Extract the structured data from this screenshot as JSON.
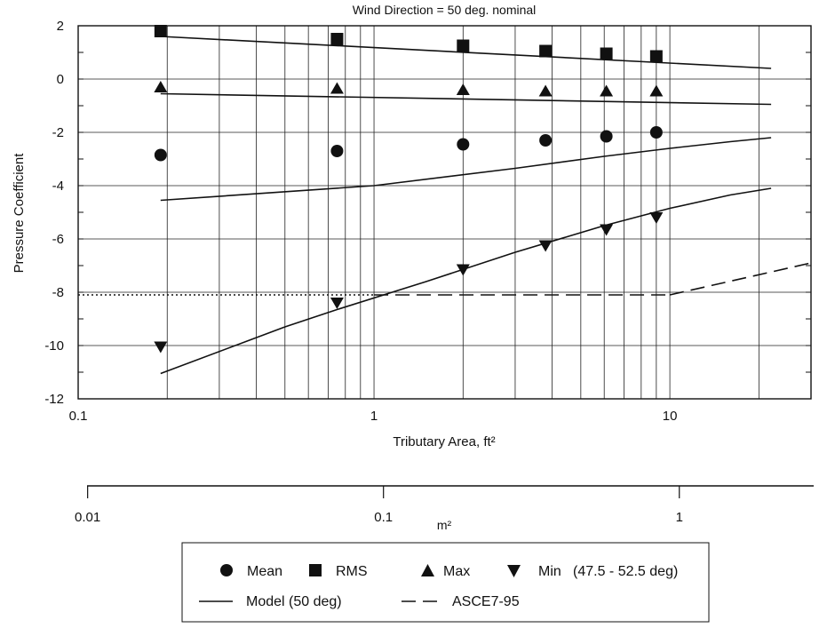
{
  "chart_data": {
    "type": "scatter",
    "title": "Wind Direction = 50 deg. nominal",
    "xlabel": "Tributary Area, ft²",
    "ylabel": "Pressure Coefficient",
    "x_scale": "log",
    "xlim": [
      0.1,
      30
    ],
    "ylim": [
      -12,
      2
    ],
    "x_ticks": [
      0.1,
      1,
      10
    ],
    "x_tick_labels": [
      "0.1",
      "1",
      "10"
    ],
    "y_ticks": [
      2,
      0,
      -2,
      -4,
      -6,
      -8,
      -10,
      -12
    ],
    "y_tick_labels": [
      "2",
      "0",
      "-2",
      "-4",
      "-6",
      "-8",
      "-10",
      "-12"
    ],
    "grid": "vertical log grid and horizontal major grid",
    "secondary_axis": {
      "label": "m²",
      "ticks": [
        0.01,
        0.1,
        1
      ],
      "tick_labels": [
        "0.01",
        "0.1",
        "1"
      ],
      "position": "below chart"
    },
    "series": [
      {
        "name": "Mean",
        "marker": "circle",
        "x": [
          0.19,
          0.75,
          2.0,
          3.8,
          6.1,
          9.0
        ],
        "y": [
          -2.85,
          -2.7,
          -2.45,
          -2.3,
          -2.15,
          -2.0
        ]
      },
      {
        "name": "RMS",
        "marker": "square",
        "x": [
          0.19,
          0.75,
          2.0,
          3.8,
          6.1,
          9.0
        ],
        "y": [
          1.8,
          1.5,
          1.25,
          1.05,
          0.95,
          0.85
        ]
      },
      {
        "name": "Max",
        "marker": "triangle-up",
        "x": [
          0.19,
          0.75,
          2.0,
          3.8,
          6.1,
          9.0
        ],
        "y": [
          -0.3,
          -0.35,
          -0.4,
          -0.45,
          -0.45,
          -0.45
        ]
      },
      {
        "name": "Min",
        "marker": "triangle-down",
        "x": [
          0.19,
          0.75,
          2.0,
          3.8,
          6.1,
          9.0
        ],
        "y": [
          -10.05,
          -8.4,
          -7.15,
          -6.25,
          -5.65,
          -5.2
        ]
      }
    ],
    "model_lines": [
      {
        "x": [
          0.19,
          22
        ],
        "y": [
          1.6,
          0.4
        ]
      },
      {
        "x": [
          0.19,
          22
        ],
        "y": [
          -0.55,
          -0.95
        ]
      },
      {
        "x": [
          0.19,
          1,
          3,
          6,
          10,
          16,
          22
        ],
        "y": [
          -4.55,
          -4.0,
          -3.35,
          -2.9,
          -2.6,
          -2.35,
          -2.2
        ]
      },
      {
        "x": [
          0.19,
          0.5,
          0.75,
          1.5,
          3,
          6,
          10,
          16,
          22
        ],
        "y": [
          -11.05,
          -9.3,
          -8.65,
          -7.6,
          -6.5,
          -5.5,
          -4.85,
          -4.35,
          -4.1
        ]
      }
    ],
    "asce_line": {
      "dotted": {
        "x": [
          0.1,
          1.0
        ],
        "y": [
          -8.1,
          -8.1
        ]
      },
      "dashed": [
        {
          "x": [
            1.0,
            10
          ],
          "y": [
            -8.1,
            -8.1
          ]
        },
        {
          "x": [
            10,
            30
          ],
          "y": [
            -8.1,
            -6.9
          ]
        }
      ]
    },
    "legend": {
      "position": "bottom-center",
      "mean": "Mean",
      "rms": "RMS",
      "max": "Max",
      "min": "Min",
      "min_note": "(47.5 - 52.5 deg)",
      "model": "Model (50 deg)",
      "asce": "ASCE7-95"
    }
  }
}
